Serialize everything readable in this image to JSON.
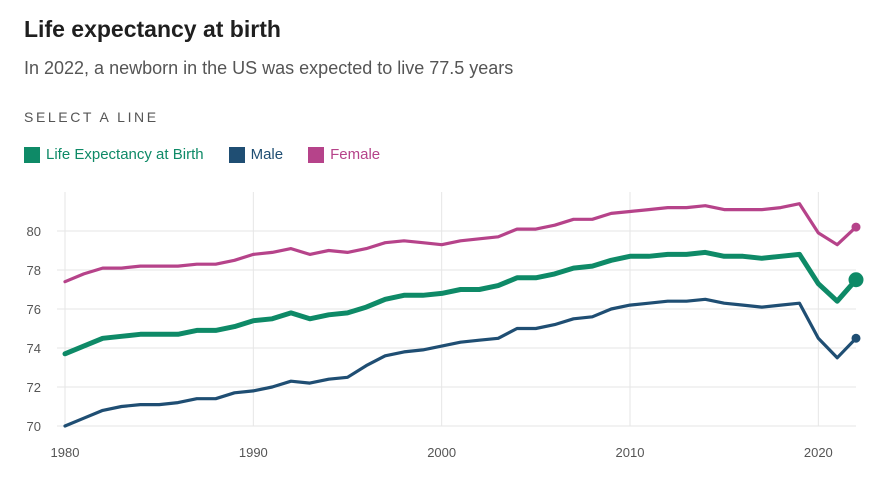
{
  "title": "Life expectancy at birth",
  "subtitle": "In 2022, a newborn in the US was expected to live 77.5 years",
  "select_label": "SELECT A LINE",
  "legend": [
    {
      "name": "Life Expectancy at Birth",
      "color": "#0e8a67"
    },
    {
      "name": "Male",
      "color": "#1f4e73"
    },
    {
      "name": "Female",
      "color": "#b6438a"
    }
  ],
  "chart_data": {
    "type": "line",
    "title": "Life expectancy at birth",
    "subtitle": "In 2022, a newborn in the US was expected to live 77.5 years",
    "xlabel": "",
    "ylabel": "",
    "x": [
      1980,
      1981,
      1982,
      1983,
      1984,
      1985,
      1986,
      1987,
      1988,
      1989,
      1990,
      1991,
      1992,
      1993,
      1994,
      1995,
      1996,
      1997,
      1998,
      1999,
      2000,
      2001,
      2002,
      2003,
      2004,
      2005,
      2006,
      2007,
      2008,
      2009,
      2010,
      2011,
      2012,
      2013,
      2014,
      2015,
      2016,
      2017,
      2018,
      2019,
      2020,
      2021,
      2022
    ],
    "xlim": [
      1980,
      2022
    ],
    "ylim": [
      70,
      82
    ],
    "x_ticks": [
      1980,
      1990,
      2000,
      2010,
      2020
    ],
    "y_ticks": [
      70,
      72,
      74,
      76,
      78,
      80
    ],
    "grid": true,
    "selected_series": "Life Expectancy at Birth",
    "series": [
      {
        "name": "Life Expectancy at Birth",
        "color": "#0e8a67",
        "values": [
          73.7,
          74.1,
          74.5,
          74.6,
          74.7,
          74.7,
          74.7,
          74.9,
          74.9,
          75.1,
          75.4,
          75.5,
          75.8,
          75.5,
          75.7,
          75.8,
          76.1,
          76.5,
          76.7,
          76.7,
          76.8,
          77.0,
          77.0,
          77.2,
          77.6,
          77.6,
          77.8,
          78.1,
          78.2,
          78.5,
          78.7,
          78.7,
          78.8,
          78.8,
          78.9,
          78.7,
          78.7,
          78.6,
          78.7,
          78.8,
          77.3,
          76.4,
          77.5
        ]
      },
      {
        "name": "Male",
        "color": "#1f4e73",
        "values": [
          70.0,
          70.4,
          70.8,
          71.0,
          71.1,
          71.1,
          71.2,
          71.4,
          71.4,
          71.7,
          71.8,
          72.0,
          72.3,
          72.2,
          72.4,
          72.5,
          73.1,
          73.6,
          73.8,
          73.9,
          74.1,
          74.3,
          74.4,
          74.5,
          75.0,
          75.0,
          75.2,
          75.5,
          75.6,
          76.0,
          76.2,
          76.3,
          76.4,
          76.4,
          76.5,
          76.3,
          76.2,
          76.1,
          76.2,
          76.3,
          74.5,
          73.5,
          74.5
        ]
      },
      {
        "name": "Female",
        "color": "#b6438a",
        "values": [
          77.4,
          77.8,
          78.1,
          78.1,
          78.2,
          78.2,
          78.2,
          78.3,
          78.3,
          78.5,
          78.8,
          78.9,
          79.1,
          78.8,
          79.0,
          78.9,
          79.1,
          79.4,
          79.5,
          79.4,
          79.3,
          79.5,
          79.6,
          79.7,
          80.1,
          80.1,
          80.3,
          80.6,
          80.6,
          80.9,
          81.0,
          81.1,
          81.2,
          81.2,
          81.3,
          81.1,
          81.1,
          81.1,
          81.2,
          81.4,
          79.9,
          79.3,
          80.2
        ]
      }
    ]
  }
}
